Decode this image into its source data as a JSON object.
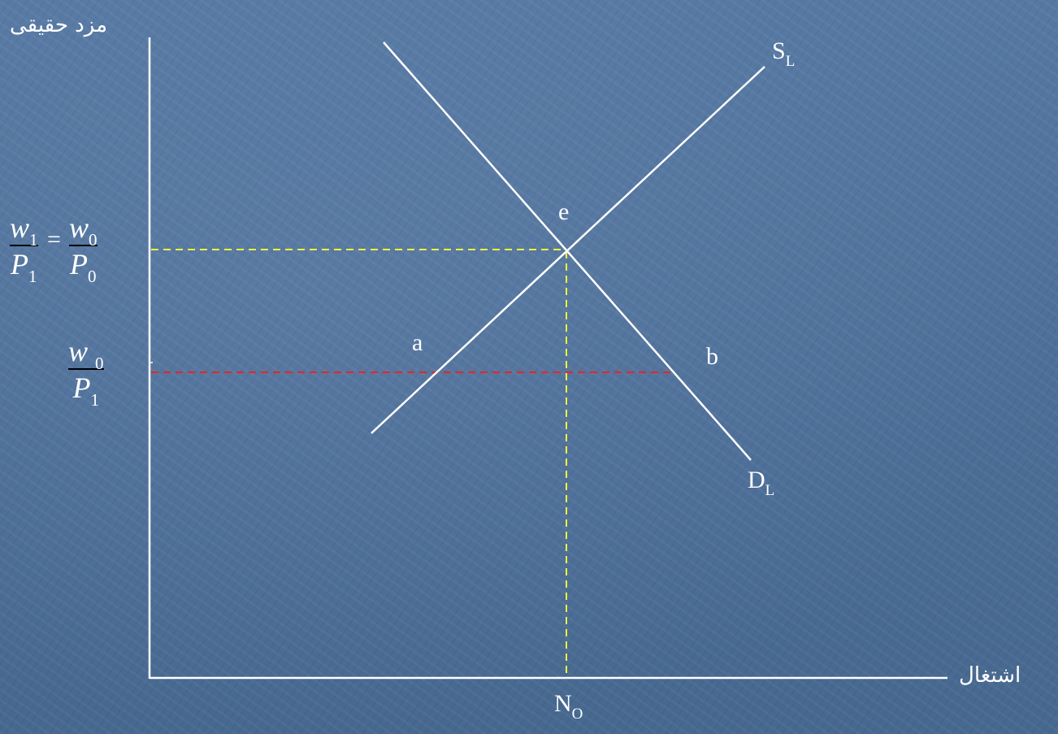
{
  "diagram": {
    "y_axis_label": "مزد حقیقی",
    "x_axis_label": "اشتغال",
    "supply_curve": {
      "letter": "S",
      "sub": "L"
    },
    "demand_curve": {
      "letter": "D",
      "sub": "L"
    },
    "x_tick": {
      "letter": "N",
      "sub": "O"
    },
    "points": {
      "equilibrium": "e",
      "supply_point": "a",
      "demand_point": "b"
    },
    "upper_wage": {
      "left": {
        "num_var": "w",
        "num_sub": "1",
        "den_var": "P",
        "den_sub": "1"
      },
      "equals": "=",
      "right": {
        "num_var": "w",
        "num_sub": "0",
        "den_var": "P",
        "den_sub": "0"
      }
    },
    "lower_wage": {
      "num_var": "w",
      "num_sub": "0",
      "den_var": "P",
      "den_sub": "1"
    },
    "colors": {
      "axes": "#ffffff",
      "curves": "#ffffff",
      "equilibrium_guides": "#f2f23a",
      "lower_wage_guide": "#e8242a",
      "fraction_bar": "#000000"
    }
  }
}
